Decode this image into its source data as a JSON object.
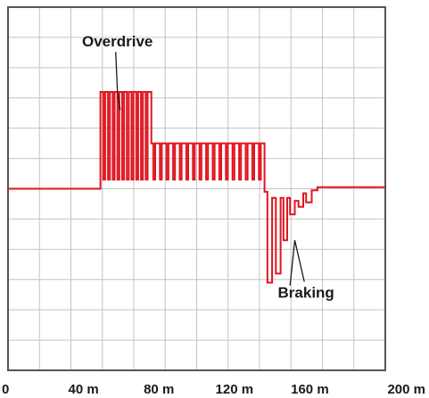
{
  "chart_data": {
    "type": "line",
    "title": "",
    "xlabel": "",
    "ylabel": "",
    "x_unit": "m",
    "xlim": [
      0,
      200
    ],
    "ylim": [
      -6,
      6
    ],
    "grid": true,
    "x_ticks": [
      {
        "value": 0,
        "label": "0"
      },
      {
        "value": 40,
        "label": "40 m"
      },
      {
        "value": 80,
        "label": "80 m"
      },
      {
        "value": 120,
        "label": "120 m"
      },
      {
        "value": 160,
        "label": "160 m"
      },
      {
        "value": 200,
        "label": "200 m"
      }
    ],
    "colors": {
      "trace": "#e0141e",
      "grid": "#c4c4c4",
      "frame": "#555555",
      "text": "#1a1a1a"
    },
    "series": [
      {
        "points": [
          [
            0,
            0
          ],
          [
            49,
            0
          ],
          [
            49,
            3.2
          ],
          [
            50.5,
            3.2
          ],
          [
            50.5,
            0.3
          ],
          [
            51.5,
            0.3
          ],
          [
            51.5,
            3.2
          ],
          [
            53,
            3.2
          ],
          [
            53,
            0.3
          ],
          [
            54,
            0.3
          ],
          [
            54,
            3.2
          ],
          [
            55.5,
            3.2
          ],
          [
            55.5,
            0.3
          ],
          [
            56.5,
            0.3
          ],
          [
            56.5,
            3.2
          ],
          [
            58,
            3.2
          ],
          [
            58,
            0.3
          ],
          [
            59,
            0.3
          ],
          [
            59,
            3.2
          ],
          [
            60.5,
            3.2
          ],
          [
            60.5,
            0.3
          ],
          [
            61.5,
            0.3
          ],
          [
            61.5,
            3.2
          ],
          [
            63,
            3.2
          ],
          [
            63,
            0.3
          ],
          [
            64,
            0.3
          ],
          [
            64,
            3.2
          ],
          [
            65.5,
            3.2
          ],
          [
            65.5,
            0.3
          ],
          [
            66.5,
            0.3
          ],
          [
            66.5,
            3.2
          ],
          [
            68,
            3.2
          ],
          [
            68,
            0.3
          ],
          [
            69,
            0.3
          ],
          [
            69,
            3.2
          ],
          [
            70.5,
            3.2
          ],
          [
            70.5,
            0.3
          ],
          [
            71.5,
            0.3
          ],
          [
            71.5,
            3.2
          ],
          [
            73,
            3.2
          ],
          [
            73,
            0.3
          ],
          [
            74,
            0.3
          ],
          [
            74,
            3.2
          ],
          [
            76,
            3.2
          ],
          [
            76,
            1.5
          ],
          [
            77,
            1.5
          ],
          [
            77,
            0.3
          ],
          [
            78,
            0.3
          ],
          [
            78,
            1.5
          ],
          [
            80.5,
            1.5
          ],
          [
            80.5,
            0.3
          ],
          [
            81.5,
            0.3
          ],
          [
            81.5,
            1.5
          ],
          [
            84,
            1.5
          ],
          [
            84,
            0.3
          ],
          [
            85,
            0.3
          ],
          [
            85,
            1.5
          ],
          [
            87.5,
            1.5
          ],
          [
            87.5,
            0.3
          ],
          [
            88.5,
            0.3
          ],
          [
            88.5,
            1.5
          ],
          [
            91,
            1.5
          ],
          [
            91,
            0.3
          ],
          [
            92,
            0.3
          ],
          [
            92,
            1.5
          ],
          [
            94.5,
            1.5
          ],
          [
            94.5,
            0.3
          ],
          [
            95.5,
            0.3
          ],
          [
            95.5,
            1.5
          ],
          [
            98,
            1.5
          ],
          [
            98,
            0.3
          ],
          [
            99,
            0.3
          ],
          [
            99,
            1.5
          ],
          [
            101.5,
            1.5
          ],
          [
            101.5,
            0.3
          ],
          [
            102.5,
            0.3
          ],
          [
            102.5,
            1.5
          ],
          [
            105,
            1.5
          ],
          [
            105,
            0.3
          ],
          [
            106,
            0.3
          ],
          [
            106,
            1.5
          ],
          [
            108.5,
            1.5
          ],
          [
            108.5,
            0.3
          ],
          [
            109.5,
            0.3
          ],
          [
            109.5,
            1.5
          ],
          [
            112,
            1.5
          ],
          [
            112,
            0.3
          ],
          [
            113,
            0.3
          ],
          [
            113,
            1.5
          ],
          [
            115.5,
            1.5
          ],
          [
            115.5,
            0.3
          ],
          [
            116.5,
            0.3
          ],
          [
            116.5,
            1.5
          ],
          [
            119,
            1.5
          ],
          [
            119,
            0.3
          ],
          [
            120,
            0.3
          ],
          [
            120,
            1.5
          ],
          [
            122.5,
            1.5
          ],
          [
            122.5,
            0.3
          ],
          [
            123.5,
            0.3
          ],
          [
            123.5,
            1.5
          ],
          [
            126,
            1.5
          ],
          [
            126,
            0.3
          ],
          [
            127,
            0.3
          ],
          [
            127,
            1.5
          ],
          [
            129.5,
            1.5
          ],
          [
            129.5,
            0.3
          ],
          [
            130.5,
            0.3
          ],
          [
            130.5,
            1.5
          ],
          [
            133,
            1.5
          ],
          [
            133,
            0.3
          ],
          [
            134,
            0.3
          ],
          [
            134,
            1.5
          ],
          [
            136,
            1.5
          ],
          [
            136,
            -0.1
          ],
          [
            137.5,
            -0.1
          ],
          [
            137.5,
            -3.1
          ],
          [
            140,
            -3.1
          ],
          [
            140,
            -0.3
          ],
          [
            142,
            -0.3
          ],
          [
            142,
            -2.8
          ],
          [
            144.5,
            -2.8
          ],
          [
            144.5,
            -0.3
          ],
          [
            146,
            -0.3
          ],
          [
            146,
            -1.7
          ],
          [
            148,
            -1.7
          ],
          [
            148,
            -0.3
          ],
          [
            149.5,
            -0.3
          ],
          [
            149.5,
            -0.85
          ],
          [
            152,
            -0.85
          ],
          [
            152,
            -0.4
          ],
          [
            154,
            -0.4
          ],
          [
            154,
            -0.6
          ],
          [
            156.5,
            -0.6
          ],
          [
            156.5,
            -0.15
          ],
          [
            158,
            -0.15
          ],
          [
            158,
            -0.45
          ],
          [
            161,
            -0.45
          ],
          [
            161,
            -0.05
          ],
          [
            164,
            -0.05
          ],
          [
            164,
            0.05
          ],
          [
            200,
            0.05
          ]
        ]
      }
    ],
    "annotations": [
      {
        "text": "Overdrive",
        "x": 58,
        "y": 4.7,
        "points_to": [
          [
            58,
            3.2
          ],
          [
            59.5,
            2.6
          ]
        ]
      },
      {
        "text": "Braking",
        "x": 158,
        "y": -3.6,
        "points_to": [
          [
            152,
            -1.7
          ],
          [
            149.5,
            -3.2
          ]
        ]
      }
    ]
  }
}
